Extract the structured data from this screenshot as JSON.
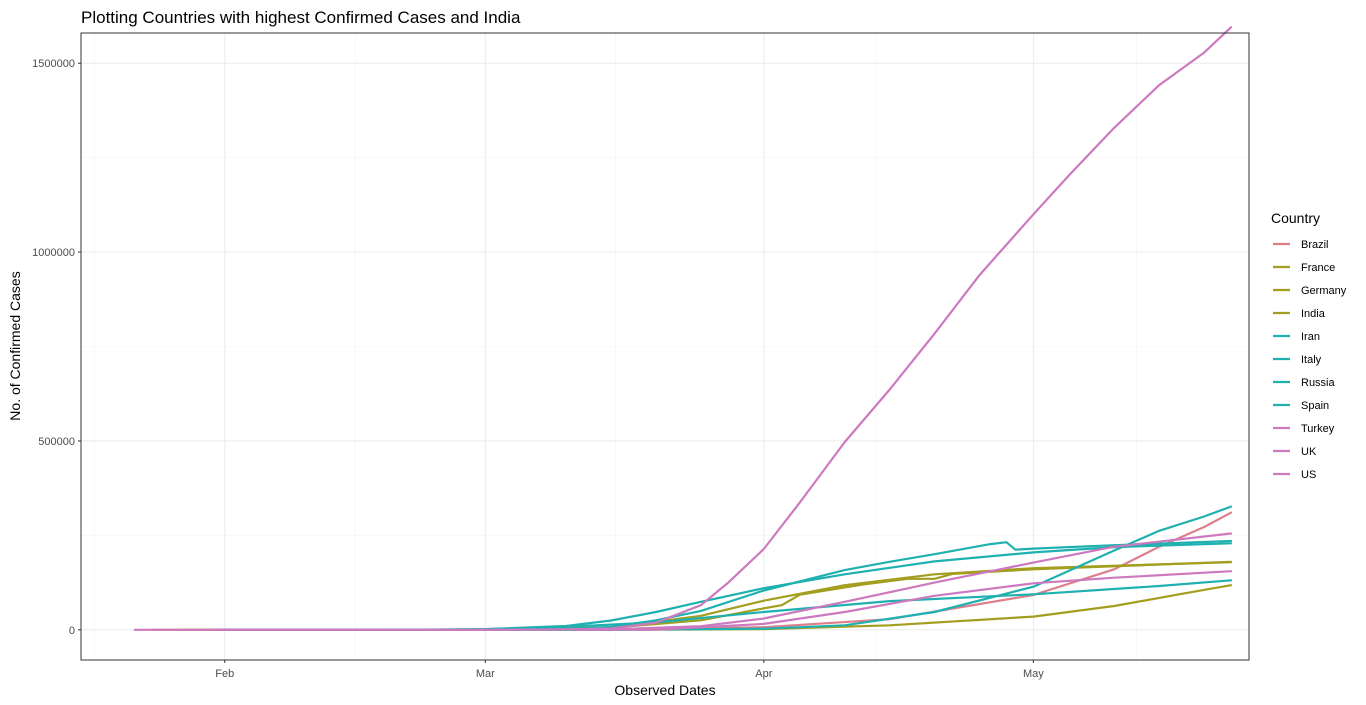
{
  "chart_data": {
    "type": "line",
    "title": "Plotting Countries with highest Confirmed Cases and India",
    "xlabel": "Observed Dates",
    "ylabel": "No. of Confirmed Cases",
    "x_axis": {
      "type": "date",
      "range": [
        "2020-01-16",
        "2020-05-25"
      ],
      "ticks": [
        {
          "date": "2020-02-01",
          "label": "Feb"
        },
        {
          "date": "2020-03-01",
          "label": "Mar"
        },
        {
          "date": "2020-04-01",
          "label": "Apr"
        },
        {
          "date": "2020-05-01",
          "label": "May"
        }
      ]
    },
    "y_axis": {
      "range": [
        -80000,
        1580000
      ],
      "ticks": [
        {
          "value": 0,
          "label": "0"
        },
        {
          "value": 500000,
          "label": "500000"
        },
        {
          "value": 1000000,
          "label": "1000000"
        },
        {
          "value": 1500000,
          "label": "1500000"
        }
      ]
    },
    "grid": true,
    "legend": {
      "title": "Country",
      "position": "right"
    },
    "series": [
      {
        "name": "Brazil",
        "color": "#E7861B",
        "stroke": "#dd7f8a",
        "points": [
          [
            "2020-02-26",
            0
          ],
          [
            "2020-03-15",
            200
          ],
          [
            "2020-04-01",
            6800
          ],
          [
            "2020-04-15",
            28000
          ],
          [
            "2020-05-01",
            92000
          ],
          [
            "2020-05-10",
            160000
          ],
          [
            "2020-05-15",
            220000
          ],
          [
            "2020-05-20",
            272000
          ],
          [
            "2020-05-23",
            310000
          ]
        ]
      },
      {
        "name": "France",
        "color": "#a39e1f",
        "stroke": "#a39e1f",
        "points": [
          [
            "2020-01-24",
            0
          ],
          [
            "2020-02-29",
            100
          ],
          [
            "2020-03-15",
            5400
          ],
          [
            "2020-03-25",
            25000
          ],
          [
            "2020-04-01",
            57000
          ],
          [
            "2020-04-03",
            65000
          ],
          [
            "2020-04-05",
            93000
          ],
          [
            "2020-04-12",
            120000
          ],
          [
            "2020-04-17",
            135000
          ],
          [
            "2020-04-20",
            135000
          ],
          [
            "2020-04-22",
            148000
          ],
          [
            "2020-05-01",
            160000
          ],
          [
            "2020-05-23",
            180000
          ]
        ]
      },
      {
        "name": "Germany",
        "color": "#a39e1f",
        "stroke": "#a39e1f",
        "points": [
          [
            "2020-01-27",
            0
          ],
          [
            "2020-03-01",
            100
          ],
          [
            "2020-03-15",
            5800
          ],
          [
            "2020-03-25",
            37000
          ],
          [
            "2020-04-01",
            77000
          ],
          [
            "2020-04-10",
            118000
          ],
          [
            "2020-04-20",
            147000
          ],
          [
            "2020-05-01",
            163000
          ],
          [
            "2020-05-23",
            179000
          ]
        ]
      },
      {
        "name": "India",
        "color": "#a39e1f",
        "stroke": "#a39e1f",
        "points": [
          [
            "2020-01-30",
            0
          ],
          [
            "2020-03-01",
            3
          ],
          [
            "2020-03-20",
            250
          ],
          [
            "2020-04-01",
            1800
          ],
          [
            "2020-04-15",
            12000
          ],
          [
            "2020-05-01",
            35000
          ],
          [
            "2020-05-10",
            63000
          ],
          [
            "2020-05-18",
            97000
          ],
          [
            "2020-05-23",
            118000
          ]
        ]
      },
      {
        "name": "Iran",
        "color": "#1fb0b0",
        "stroke": "#1fb0b0",
        "points": [
          [
            "2020-02-19",
            0
          ],
          [
            "2020-03-01",
            1500
          ],
          [
            "2020-03-10",
            8000
          ],
          [
            "2020-03-20",
            19600
          ],
          [
            "2020-04-01",
            47000
          ],
          [
            "2020-04-15",
            76000
          ],
          [
            "2020-05-01",
            94000
          ],
          [
            "2020-05-15",
            116000
          ],
          [
            "2020-05-23",
            131000
          ]
        ]
      },
      {
        "name": "Italy",
        "color": "#1fb0b0",
        "stroke": "#1fb0b0",
        "points": [
          [
            "2020-01-31",
            0
          ],
          [
            "2020-02-22",
            0
          ],
          [
            "2020-03-01",
            1700
          ],
          [
            "2020-03-10",
            10100
          ],
          [
            "2020-03-15",
            24700
          ],
          [
            "2020-03-20",
            47000
          ],
          [
            "2020-03-25",
            74000
          ],
          [
            "2020-04-01",
            110000
          ],
          [
            "2020-04-10",
            147000
          ],
          [
            "2020-04-20",
            181000
          ],
          [
            "2020-05-01",
            205000
          ],
          [
            "2020-05-10",
            219000
          ],
          [
            "2020-05-23",
            229000
          ]
        ]
      },
      {
        "name": "Russia",
        "color": "#1fb0b0",
        "stroke": "#1fb0b0",
        "points": [
          [
            "2020-01-31",
            0
          ],
          [
            "2020-03-15",
            60
          ],
          [
            "2020-04-01",
            2800
          ],
          [
            "2020-04-10",
            12000
          ],
          [
            "2020-04-20",
            47000
          ],
          [
            "2020-05-01",
            114000
          ],
          [
            "2020-05-10",
            210000
          ],
          [
            "2020-05-15",
            262000
          ],
          [
            "2020-05-20",
            300000
          ],
          [
            "2020-05-23",
            326000
          ]
        ]
      },
      {
        "name": "Spain",
        "color": "#1fb0b0",
        "stroke": "#1fb0b0",
        "points": [
          [
            "2020-02-01",
            0
          ],
          [
            "2020-03-01",
            80
          ],
          [
            "2020-03-10",
            1700
          ],
          [
            "2020-03-15",
            7800
          ],
          [
            "2020-03-20",
            25000
          ],
          [
            "2020-03-25",
            50000
          ],
          [
            "2020-04-01",
            104000
          ],
          [
            "2020-04-10",
            158000
          ],
          [
            "2020-04-15",
            180000
          ],
          [
            "2020-04-20",
            200000
          ],
          [
            "2020-04-26",
            226000
          ],
          [
            "2020-04-28",
            232000
          ],
          [
            "2020-04-29",
            212000
          ],
          [
            "2020-05-01",
            215000
          ],
          [
            "2020-05-10",
            224000
          ],
          [
            "2020-05-23",
            235000
          ]
        ]
      },
      {
        "name": "Turkey",
        "color": "#cc79c0",
        "stroke": "#cc79c0",
        "points": [
          [
            "2020-03-11",
            0
          ],
          [
            "2020-03-20",
            360
          ],
          [
            "2020-04-01",
            15700
          ],
          [
            "2020-04-10",
            47000
          ],
          [
            "2020-04-20",
            90000
          ],
          [
            "2020-05-01",
            123000
          ],
          [
            "2020-05-10",
            138000
          ],
          [
            "2020-05-23",
            155000
          ]
        ]
      },
      {
        "name": "UK",
        "color": "#cc79c0",
        "stroke": "#cc79c0",
        "points": [
          [
            "2020-01-31",
            0
          ],
          [
            "2020-03-01",
            36
          ],
          [
            "2020-03-15",
            1400
          ],
          [
            "2020-03-25",
            9500
          ],
          [
            "2020-04-01",
            30000
          ],
          [
            "2020-04-10",
            74000
          ],
          [
            "2020-04-20",
            125000
          ],
          [
            "2020-05-01",
            178000
          ],
          [
            "2020-05-10",
            220000
          ],
          [
            "2020-05-23",
            255000
          ]
        ]
      },
      {
        "name": "US",
        "color": "#cc79c0",
        "stroke": "#cc79c0",
        "points": [
          [
            "2020-01-22",
            0
          ],
          [
            "2020-03-01",
            75
          ],
          [
            "2020-03-10",
            1000
          ],
          [
            "2020-03-15",
            3500
          ],
          [
            "2020-03-20",
            19000
          ],
          [
            "2020-03-25",
            65000
          ],
          [
            "2020-03-28",
            124000
          ],
          [
            "2020-04-01",
            214000
          ],
          [
            "2020-04-05",
            337000
          ],
          [
            "2020-04-10",
            497000
          ],
          [
            "2020-04-15",
            636000
          ],
          [
            "2020-04-20",
            784000
          ],
          [
            "2020-04-25",
            939000
          ],
          [
            "2020-05-01",
            1100000
          ],
          [
            "2020-05-05",
            1204000
          ],
          [
            "2020-05-10",
            1329000
          ],
          [
            "2020-05-15",
            1442000
          ],
          [
            "2020-05-20",
            1528000
          ],
          [
            "2020-05-23",
            1595000
          ]
        ]
      }
    ]
  }
}
